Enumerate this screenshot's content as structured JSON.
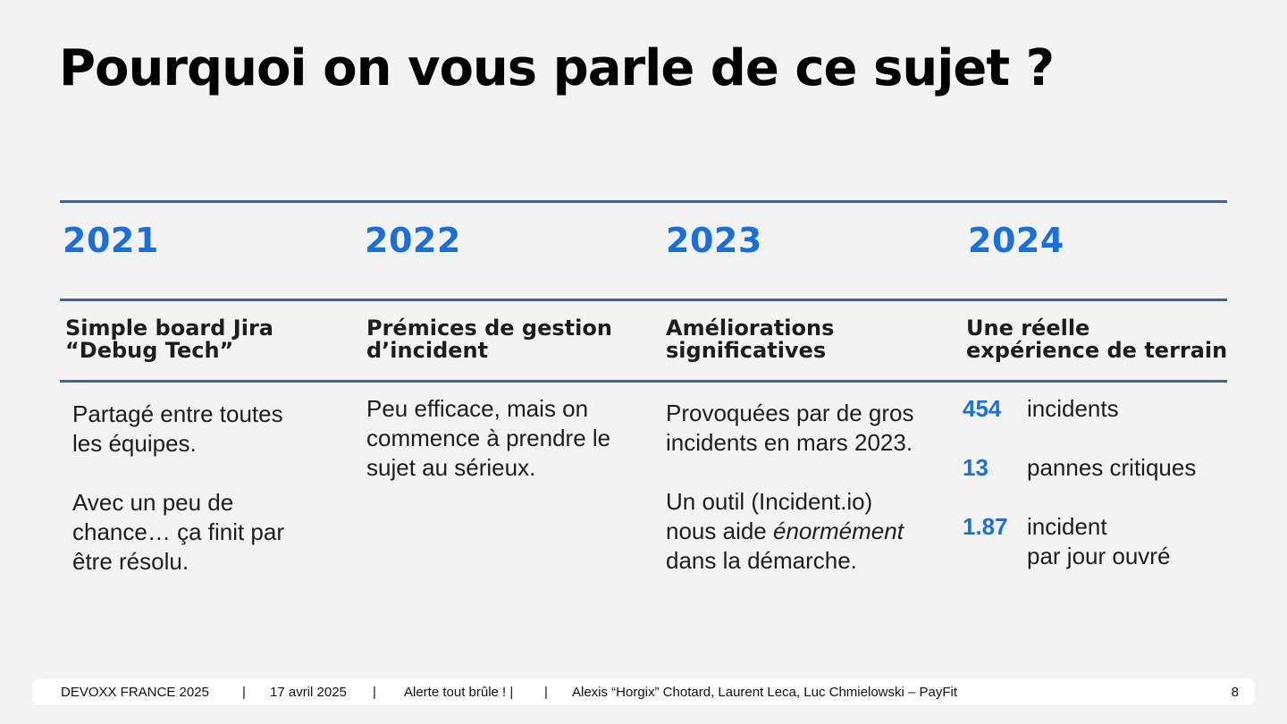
{
  "title": "Pourquoi on vous parle de ce sujet ?",
  "columns": [
    {
      "year": "2021",
      "heading_line1": "Simple board Jira",
      "heading_line2": "“Debug Tech”",
      "body_p1": [
        "Partagé entre toutes",
        "les équipes."
      ],
      "body_p2": [
        "Avec un peu de",
        "chance… ça finit par",
        "être résolu."
      ]
    },
    {
      "year": "2022",
      "heading_line1": "Prémices de gestion",
      "heading_line2": "d’incident",
      "body_p1": [
        "Peu efficace, mais on",
        "commence à prendre le",
        "sujet au sérieux."
      ]
    },
    {
      "year": "2023",
      "heading_line1": "Améliorations",
      "heading_line2": "significatives",
      "body_p1": [
        "Provoquées par de gros",
        "incidents en mars 2023."
      ],
      "body_p2_line1": "Un outil (Incident.io)",
      "body_p2_line2_pre": "nous aide ",
      "body_p2_line2_em": "énormément",
      "body_p2_line3": "dans la démarche."
    },
    {
      "year": "2024",
      "heading_line1": "Une réelle",
      "heading_line2": "expérience de terrain",
      "stats": [
        {
          "value": "454",
          "label_line1": "incidents",
          "label_line2": ""
        },
        {
          "value": "13",
          "label_line1": "pannes critiques",
          "label_line2": ""
        },
        {
          "value": "1.87",
          "label_line1": "incident",
          "label_line2": "par jour ouvré"
        }
      ]
    }
  ],
  "footer": {
    "event": "DEVOXX FRANCE 2025",
    "sep1": "|",
    "date": "17 avril 2025",
    "sep2": "|",
    "talk": "Alerte tout brûle !  |",
    "sep3": "|",
    "speakers": "Alexis “Horgix” Chotard, Laurent Leca, Luc Chmielowski – PayFit",
    "page_number": "8"
  },
  "colors": {
    "accent": "#1a6fd8",
    "rule": "#46628e",
    "background": "#f3f3f3"
  }
}
